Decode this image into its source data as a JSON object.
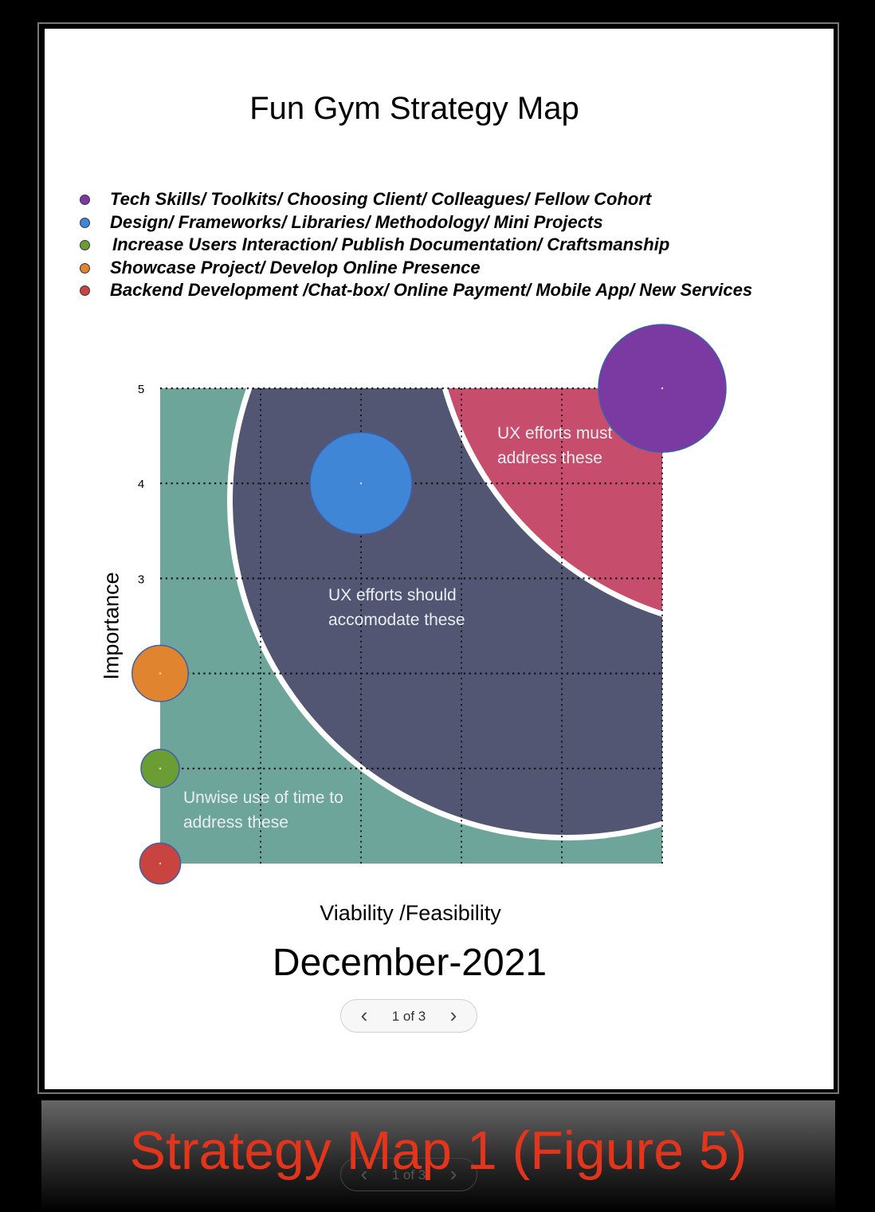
{
  "title": "Fun Gym Strategy Map",
  "legend": [
    {
      "label": "Tech Skills/ Toolkits/ Choosing Client/ Colleagues/ Fellow Cohort",
      "color": "#7b3aa1"
    },
    {
      "label": "Design/ Frameworks/ Libraries/ Methodology/ Mini Projects",
      "color": "#3f86d6"
    },
    {
      "label": "Increase Users Interaction/ Publish Documentation/ Craftsmanship",
      "color": "#6a9e34"
    },
    {
      "label": "Showcase Project/ Develop Online Presence",
      "color": "#e0842f"
    },
    {
      "label": "Backend Development /Chat-box/ Online Payment/ Mobile App/ New Services",
      "color": "#c9433f"
    }
  ],
  "regions": {
    "high": "UX efforts must address these",
    "mid": "UX efforts should accomodate these",
    "low": "Unwise use of time to address these",
    "colors": {
      "low": "#6ea59b",
      "mid": "#525672",
      "high": "#c74d6d"
    }
  },
  "chart_data": {
    "type": "scatter",
    "title": "Fun Gym Strategy Map",
    "xlabel": "Viability /Feasibility",
    "ylabel": "Importance",
    "xlim": [
      0,
      5
    ],
    "ylim": [
      0,
      5
    ],
    "yticks": [
      {
        "value": 3,
        "label": "3"
      },
      {
        "value": 4,
        "label": "4"
      },
      {
        "value": 5,
        "label": "5"
      }
    ],
    "grid": true,
    "series": [
      {
        "name": "Tech Skills/ Toolkits/ Choosing Client/ Colleagues/ Fellow Cohort",
        "x": 5,
        "y": 5,
        "size": 5,
        "color": "#7b3aa1"
      },
      {
        "name": "Design/ Frameworks/ Libraries/ Methodology/ Mini Projects",
        "x": 2,
        "y": 4,
        "size": 4,
        "color": "#3f86d6"
      },
      {
        "name": "Increase Users Interaction/ Publish Documentation/ Craftsmanship",
        "x": 0,
        "y": 1,
        "size": 1.5,
        "color": "#6a9e34"
      },
      {
        "name": "Showcase Project/ Develop Online Presence",
        "x": 0,
        "y": 2,
        "size": 2.2,
        "color": "#e0842f"
      },
      {
        "name": "Backend Development /Chat-box/ Online Payment/ Mobile App/ New Services",
        "x": 0,
        "y": 0,
        "size": 1.6,
        "color": "#c9433f"
      }
    ]
  },
  "date": "December-2021",
  "pager": {
    "text": "1 of 3",
    "prev": "‹",
    "next": "›"
  },
  "caption": "Strategy Map 1 (Figure 5)"
}
